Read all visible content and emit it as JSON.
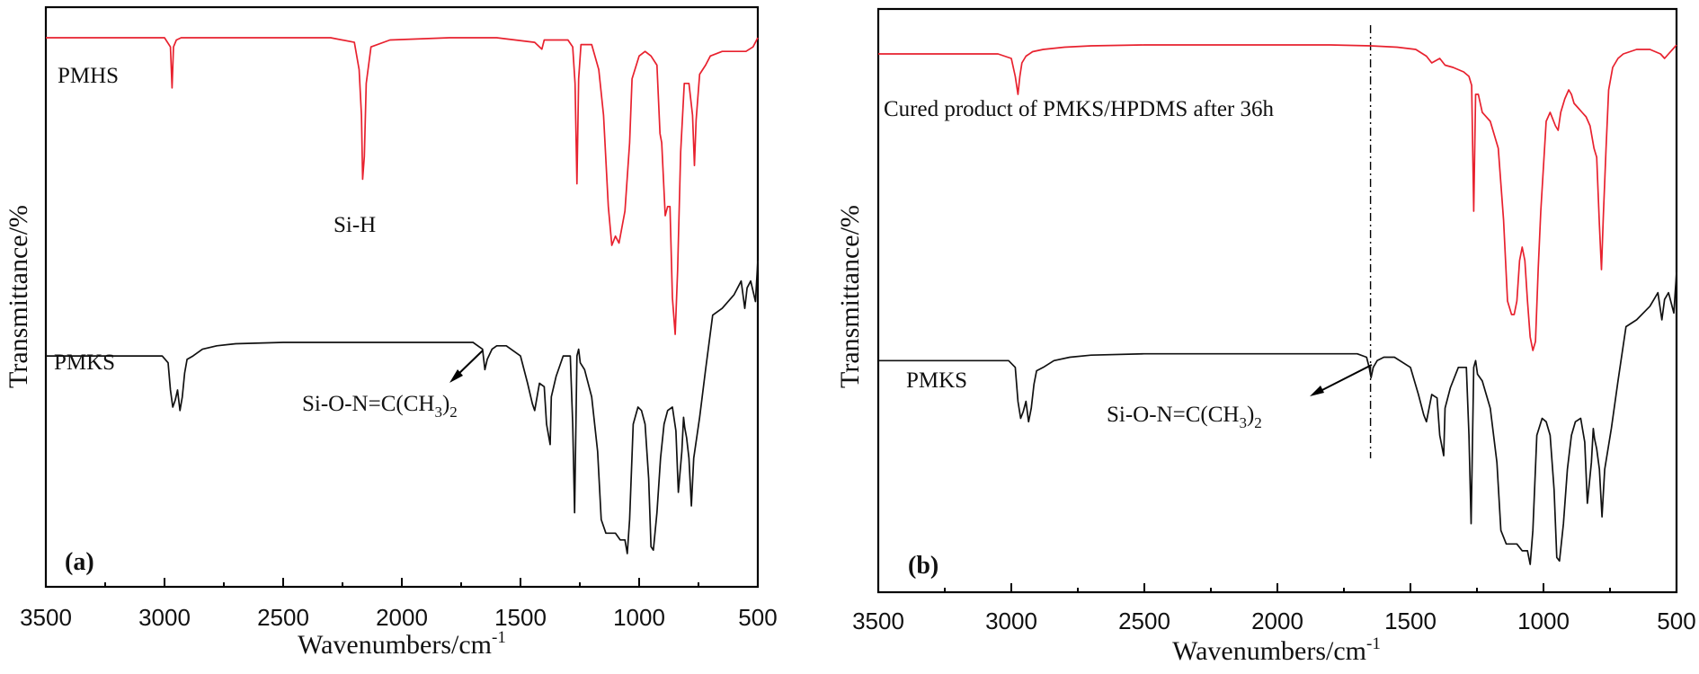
{
  "chart_data": [
    {
      "type": "line",
      "panel_label": "(a)",
      "xlabel": "Wavenumbers/cm",
      "xlabel_sup": "-1",
      "ylabel": "Transmittance/%",
      "xlim": [
        3500,
        500
      ],
      "x_reversed": true,
      "x_ticks": [
        "3500",
        "3000",
        "2500",
        "2000",
        "1500",
        "1000",
        "500"
      ],
      "series": [
        {
          "name": "PMHS",
          "color": "#e8212e",
          "x": [
            3500,
            3000,
            2975,
            2968,
            2962,
            2950,
            2930,
            2800,
            2500,
            2300,
            2200,
            2180,
            2170,
            2165,
            2158,
            2150,
            2130,
            2050,
            1800,
            1600,
            1440,
            1410,
            1400,
            1300,
            1280,
            1270,
            1262,
            1255,
            1245,
            1200,
            1170,
            1150,
            1130,
            1115,
            1100,
            1085,
            1060,
            1040,
            1030,
            1000,
            975,
            950,
            925,
            912,
            905,
            890,
            880,
            870,
            860,
            848,
            838,
            825,
            810,
            790,
            775,
            767,
            760,
            745,
            720,
            700,
            650,
            600,
            550,
            520,
            500
          ],
          "y": [
            95,
            95,
            93,
            84,
            93,
            94.5,
            95,
            95,
            95,
            95,
            94,
            88,
            78,
            64,
            69,
            85,
            93,
            94.5,
            95,
            95,
            94,
            92.5,
            94.5,
            94.5,
            93,
            85,
            63,
            86,
            93.5,
            93.5,
            88,
            78,
            58,
            49.5,
            51.5,
            50,
            57,
            72,
            86,
            91,
            92,
            91,
            89,
            74,
            72,
            56,
            58,
            58,
            38,
            30,
            44,
            70,
            85,
            85,
            78,
            67,
            77,
            87,
            89,
            91,
            92,
            92,
            92,
            93,
            95
          ]
        },
        {
          "name": "PMKS",
          "color": "#111111",
          "x": [
            3500,
            3010,
            2985,
            2975,
            2965,
            2955,
            2945,
            2935,
            2925,
            2915,
            2905,
            2880,
            2840,
            2780,
            2700,
            2500,
            2200,
            1900,
            1700,
            1660,
            1650,
            1640,
            1620,
            1600,
            1560,
            1500,
            1470,
            1450,
            1440,
            1420,
            1400,
            1390,
            1375,
            1370,
            1350,
            1320,
            1290,
            1280,
            1272,
            1262,
            1255,
            1248,
            1230,
            1200,
            1175,
            1160,
            1140,
            1120,
            1100,
            1080,
            1060,
            1050,
            1040,
            1025,
            1005,
            990,
            975,
            960,
            950,
            940,
            925,
            910,
            895,
            880,
            860,
            845,
            835,
            820,
            813,
            808,
            800,
            790,
            780,
            770,
            745,
            720,
            690,
            650,
            600,
            570,
            555,
            545,
            530,
            510,
            500
          ],
          "y": [
            32,
            32,
            31,
            27,
            24.5,
            25.5,
            27,
            24,
            26,
            29.5,
            31.5,
            32,
            33,
            33.5,
            33.8,
            34,
            34,
            34,
            34,
            33,
            30,
            31.5,
            33,
            33.5,
            33.5,
            32,
            28,
            25,
            24,
            28,
            27.5,
            22,
            19,
            26,
            29,
            32,
            32,
            22,
            9,
            32,
            33,
            31,
            30,
            26,
            18,
            8,
            6,
            6,
            6,
            5,
            5,
            3,
            8,
            22,
            24.5,
            24,
            22,
            14,
            4,
            3.5,
            9,
            17,
            22,
            24,
            24.5,
            21,
            12,
            18,
            23,
            21.5,
            20,
            17,
            10,
            17,
            23,
            30,
            38,
            39,
            41,
            43,
            39,
            42,
            43,
            40,
            46
          ]
        }
      ],
      "annotations": {
        "pmhs_label": "PMHS",
        "pmks_label": "PMKS",
        "si_h": "Si-H",
        "oxime_main": "Si-O-N=C(CH",
        "oxime_sub1": "3",
        "oxime_mid": ")",
        "oxime_sub2": "2"
      }
    },
    {
      "type": "line",
      "panel_label": "(b)",
      "xlabel": "Wavenumbers/cm",
      "xlabel_sup": "-1",
      "ylabel": "Transmittance/%",
      "xlim": [
        3500,
        500
      ],
      "x_reversed": true,
      "x_ticks": [
        "3500",
        "3000",
        "2500",
        "2000",
        "1500",
        "1000",
        "500"
      ],
      "guide_x": 1650,
      "series": [
        {
          "name": "Cured product of PMKS/HPDMS after 36h",
          "color": "#e8212e",
          "x": [
            3500,
            3050,
            3000,
            2985,
            2975,
            2968,
            2960,
            2945,
            2920,
            2880,
            2800,
            2700,
            2500,
            2200,
            2000,
            1800,
            1650,
            1550,
            1480,
            1440,
            1420,
            1390,
            1370,
            1340,
            1300,
            1280,
            1270,
            1262,
            1255,
            1245,
            1230,
            1200,
            1170,
            1150,
            1135,
            1120,
            1110,
            1100,
            1090,
            1080,
            1070,
            1060,
            1050,
            1040,
            1030,
            1020,
            1010,
            990,
            975,
            955,
            945,
            935,
            920,
            905,
            895,
            885,
            870,
            855,
            840,
            825,
            810,
            800,
            790,
            782,
            775,
            765,
            755,
            740,
            720,
            700,
            650,
            600,
            560,
            545,
            530,
            515,
            500
          ],
          "y": [
            93,
            93,
            92,
            88,
            84,
            88,
            91,
            92.5,
            93.5,
            94,
            94.5,
            94.8,
            95,
            95,
            95,
            95,
            94.8,
            94.5,
            94,
            92.5,
            91,
            92,
            90.5,
            90,
            89,
            88,
            86,
            58,
            84,
            84,
            80,
            78,
            72,
            56,
            38,
            35,
            35,
            38,
            47,
            50,
            47,
            38,
            30,
            27,
            29,
            45,
            58,
            78,
            80,
            77,
            76,
            80,
            83,
            85,
            84,
            82,
            81,
            80,
            79,
            77,
            72,
            70,
            55,
            45,
            57,
            72,
            85,
            90,
            92,
            93,
            94,
            94,
            93,
            92,
            93,
            94,
            95
          ]
        },
        {
          "name": "PMKS",
          "color": "#111111",
          "x": [
            3500,
            3010,
            2985,
            2975,
            2965,
            2955,
            2945,
            2935,
            2925,
            2915,
            2905,
            2880,
            2840,
            2780,
            2700,
            2500,
            2200,
            1900,
            1700,
            1665,
            1655,
            1648,
            1640,
            1625,
            1600,
            1560,
            1500,
            1470,
            1450,
            1440,
            1420,
            1400,
            1390,
            1375,
            1370,
            1350,
            1320,
            1290,
            1280,
            1272,
            1262,
            1255,
            1248,
            1230,
            1200,
            1175,
            1160,
            1140,
            1120,
            1100,
            1080,
            1060,
            1050,
            1040,
            1025,
            1005,
            990,
            975,
            960,
            950,
            940,
            925,
            910,
            895,
            880,
            860,
            845,
            835,
            820,
            813,
            808,
            800,
            790,
            780,
            770,
            745,
            720,
            690,
            650,
            600,
            570,
            555,
            545,
            530,
            510,
            500
          ],
          "y": [
            33,
            33,
            32,
            27,
            24.5,
            25.5,
            27,
            24,
            26,
            29.5,
            31.5,
            32,
            33,
            33.5,
            33.8,
            34,
            34,
            34,
            34,
            33.5,
            32,
            30.5,
            32,
            33,
            33.5,
            33.5,
            32,
            28,
            25,
            24,
            28,
            27.5,
            22,
            19,
            26,
            29,
            32,
            32,
            22,
            9,
            32,
            33,
            31,
            30,
            26,
            18,
            8,
            6,
            6,
            6,
            5,
            5,
            3,
            8,
            22,
            24.5,
            24,
            22,
            14,
            4,
            3.5,
            9,
            17,
            22,
            24,
            24.5,
            21,
            12,
            18,
            23,
            21.5,
            20,
            17,
            10,
            17,
            23,
            30,
            38,
            39,
            41,
            43,
            39,
            42,
            43,
            40,
            46
          ]
        }
      ],
      "annotations": {
        "cured_label": "Cured product of PMKS/HPDMS after 36h",
        "pmks_label": "PMKS",
        "oxime_main": "Si-O-N=C(CH",
        "oxime_sub1": "3",
        "oxime_mid": ")",
        "oxime_sub2": "2"
      }
    }
  ]
}
